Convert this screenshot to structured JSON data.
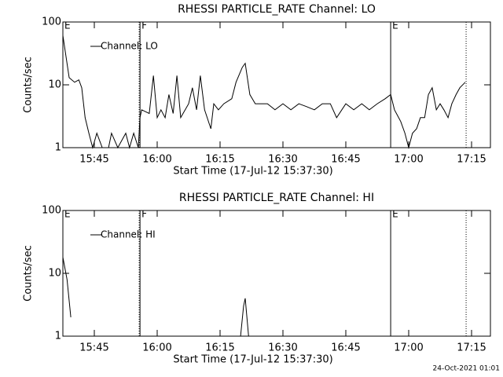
{
  "chart_data": [
    {
      "type": "line",
      "title": "RHESSI PARTICLE_RATE Channel: LO",
      "ylabel": "Counts/sec",
      "xlabel": "Start Time (17-Jul-12 15:37:30)",
      "log_y": true,
      "ylim": [
        1,
        100
      ],
      "yticks": [
        1,
        10,
        100
      ],
      "xlim": [
        0,
        102
      ],
      "xticks": [
        {
          "value": 7.5,
          "label": "15:45"
        },
        {
          "value": 22.5,
          "label": "16:00"
        },
        {
          "value": 37.5,
          "label": "16:15"
        },
        {
          "value": 52.5,
          "label": "16:30"
        },
        {
          "value": 67.5,
          "label": "16:45"
        },
        {
          "value": 82.5,
          "label": "17:00"
        },
        {
          "value": 97.5,
          "label": "17:15"
        }
      ],
      "markers": [
        {
          "x": 0,
          "label": "E"
        },
        {
          "x": 18.4,
          "label": "F"
        },
        {
          "x": 78.2,
          "label": "E"
        }
      ],
      "dotted_x": [
        18.2,
        96.2
      ],
      "legend": "upper left",
      "series": [
        {
          "name": "Channel: LO",
          "color": "#000000",
          "x": [
            0,
            1.5,
            2.8,
            3.8,
            4.5,
            5.3,
            6.2,
            7.1,
            8.1,
            9.4,
            10.9,
            11.6,
            13.1,
            15,
            15.9,
            16.9,
            18,
            18.4,
            18.8,
            20.6,
            21.6,
            22.5,
            23.4,
            24.4,
            25.3,
            26.3,
            27.2,
            28.1,
            30,
            30.9,
            31.9,
            32.8,
            33.8,
            35.3,
            36,
            37.1,
            38.4,
            40.3,
            41.3,
            42.8,
            43.5,
            44.6,
            45.9,
            48.8,
            50.6,
            52.5,
            54.4,
            56.3,
            58.1,
            60,
            61.9,
            63.8,
            65.3,
            67.5,
            69.4,
            71.3,
            73.1,
            75,
            76.9,
            78.2,
            79.1,
            80.6,
            81.6,
            82.5,
            83.4,
            84.4,
            85.3,
            86.3,
            87.2,
            88.1,
            89.1,
            90,
            90.9,
            91.9,
            92.8,
            93.8,
            94.7,
            96
          ],
          "values": [
            61,
            13,
            11,
            12,
            9,
            3,
            1.7,
            1,
            1.7,
            1,
            1,
            1.7,
            1,
            1.7,
            1,
            1.7,
            1,
            3,
            4,
            3.5,
            14,
            3,
            4,
            3,
            7,
            3.5,
            14,
            3,
            5,
            9,
            4,
            14,
            4,
            2,
            5,
            4,
            5,
            6,
            11,
            19,
            22,
            7,
            5,
            5,
            4,
            5,
            4,
            5,
            4.5,
            4,
            5,
            5,
            3,
            5,
            4,
            5,
            4,
            5,
            6,
            7,
            4,
            2.6,
            1.7,
            1,
            1.7,
            2,
            3,
            3,
            7,
            9,
            4,
            5,
            4,
            3,
            5,
            7,
            9,
            11
          ]
        }
      ]
    },
    {
      "type": "line",
      "title": "RHESSI PARTICLE_RATE Channel: HI",
      "ylabel": "Counts/sec",
      "xlabel": "Start Time (17-Jul-12 15:37:30)",
      "log_y": true,
      "ylim": [
        1,
        100
      ],
      "yticks": [
        1,
        10,
        100
      ],
      "xlim": [
        0,
        102
      ],
      "xticks": [
        {
          "value": 7.5,
          "label": "15:45"
        },
        {
          "value": 22.5,
          "label": "16:00"
        },
        {
          "value": 37.5,
          "label": "16:15"
        },
        {
          "value": 52.5,
          "label": "16:30"
        },
        {
          "value": 67.5,
          "label": "16:45"
        },
        {
          "value": 82.5,
          "label": "17:00"
        },
        {
          "value": 97.5,
          "label": "17:15"
        }
      ],
      "markers": [
        {
          "x": 0,
          "label": "E"
        },
        {
          "x": 18.4,
          "label": "F"
        },
        {
          "x": 78.2,
          "label": "E"
        }
      ],
      "dotted_x": [
        18.2,
        96.2
      ],
      "legend": "upper left",
      "series": [
        {
          "name": "Channel: HI",
          "color": "#000000",
          "x": [
            0,
            1,
            1.9,
            20,
            42.4,
            43.1,
            43.5,
            44.3
          ],
          "values": [
            18,
            8,
            2,
            null,
            1,
            3,
            4,
            1
          ]
        }
      ]
    }
  ],
  "timestamp": "24-Oct-2021 01:01"
}
